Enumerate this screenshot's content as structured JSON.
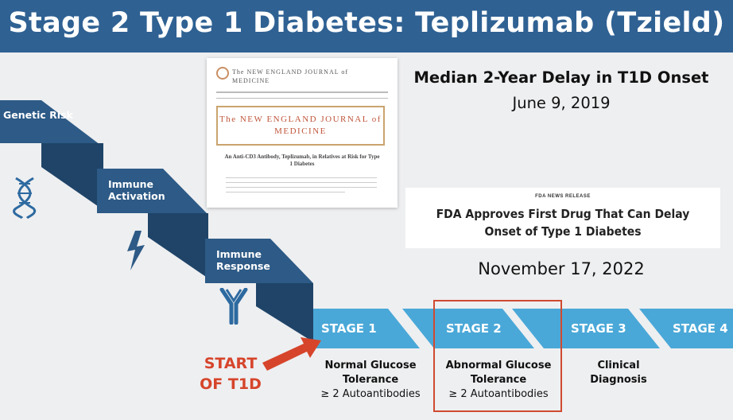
{
  "title": "Stage 2 Type 1 Diabetes: Teplizumab (Tzield)",
  "staircase": {
    "steps": [
      {
        "label": "Genetic Risk",
        "icon": "dna-icon"
      },
      {
        "label": "Immune Activation",
        "icon": "lightning-icon"
      },
      {
        "label": "Immune Response",
        "icon": "antibody-icon"
      }
    ]
  },
  "nejm": {
    "masthead": "The NEW ENGLAND JOURNAL of MEDICINE",
    "box_title": "The NEW ENGLAND JOURNAL of MEDICINE",
    "article_title": "An Anti-CD3 Antibody, Teplizumab, in Relatives at Risk for Type 1 Diabetes"
  },
  "trial": {
    "headline": "Median 2-Year Delay in T1D Onset",
    "date": "June 9, 2019"
  },
  "fda": {
    "tag": "FDA NEWS RELEASE",
    "headline": "FDA Approves First Drug That Can Delay Onset of Type 1 Diabetes",
    "date": "November 17, 2022"
  },
  "stages": [
    {
      "label": "STAGE 1",
      "line1": "Normal Glucose",
      "line2": "Tolerance",
      "line3": "≥ 2 Autoantibodies"
    },
    {
      "label": "STAGE 2",
      "line1": "Abnormal Glucose",
      "line2": "Tolerance",
      "line3": "≥ 2 Autoantibodies"
    },
    {
      "label": "STAGE 3",
      "line1": "Clinical",
      "line2": "Diagnosis",
      "line3": ""
    },
    {
      "label": "STAGE 4",
      "line1": "",
      "line2": "",
      "line3": ""
    }
  ],
  "start_label": "START OF T1D",
  "colors": {
    "title_bg": "#2f6193",
    "step_dark": "#2d5a86",
    "step_shadow": "#1f4468",
    "stage_band": "#4aa8d8",
    "accent_red": "#d6452b"
  }
}
